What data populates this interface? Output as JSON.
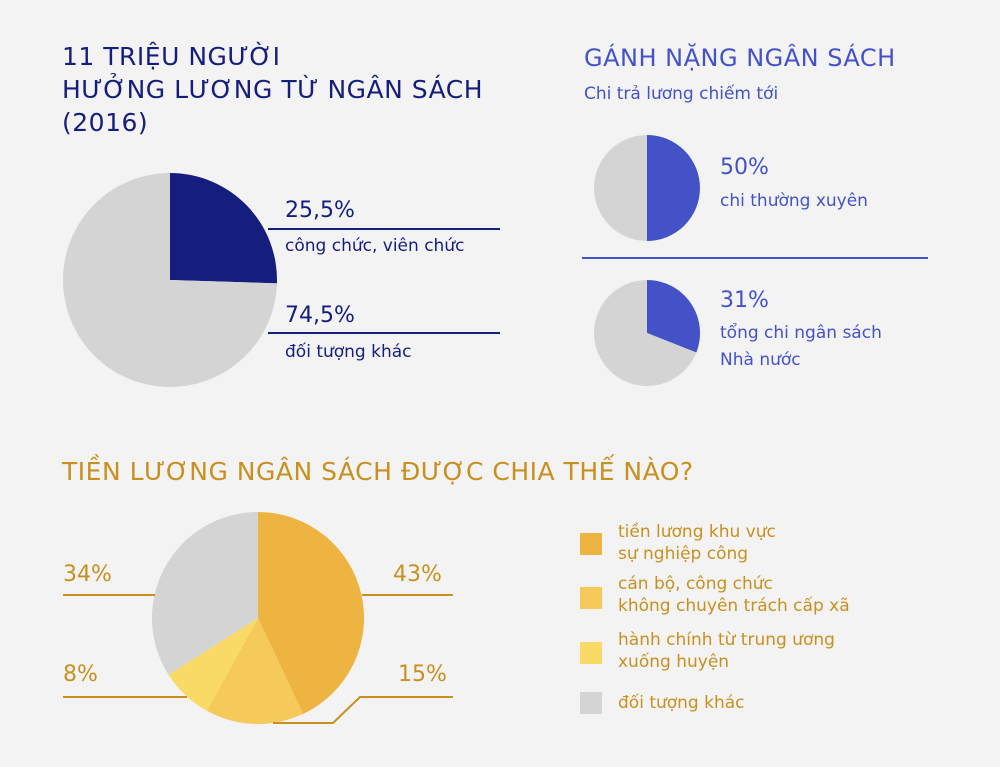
{
  "colors": {
    "navy": "#151e7c",
    "blue": "#4452c8",
    "gold_text": "#c8901e",
    "gray": "#d4d4d4",
    "gold1": "#edb441",
    "gold2": "#f5c95a",
    "gold3": "#fada66"
  },
  "chart_data": [
    {
      "type": "pie",
      "title": "11 TRIỆU NGƯỜI HƯỞNG LƯƠNG TỪ NGÂN SÁCH (2016)",
      "slices": [
        {
          "label": "công chức, viên chức",
          "value": 25.5,
          "display": "25,5%",
          "color": "#151e7c"
        },
        {
          "label": "đối tượng khác",
          "value": 74.5,
          "display": "74,5%",
          "color": "#d4d4d4"
        }
      ]
    },
    {
      "type": "pie",
      "title": "GÁNH NẶNG NGÂN SÁCH",
      "subtitle": "Chi trả lương chiếm tới",
      "slices": [
        {
          "label": "chi thường xuyên",
          "value": 50,
          "display": "50%",
          "color": "#4452c8"
        },
        {
          "label": "",
          "value": 50,
          "color": "#d4d4d4"
        }
      ]
    },
    {
      "type": "pie",
      "slices": [
        {
          "label": "tổng chi ngân sách Nhà nước",
          "value": 31,
          "display": "31%",
          "color": "#4452c8"
        },
        {
          "label": "",
          "value": 69,
          "color": "#d4d4d4"
        }
      ]
    },
    {
      "type": "pie",
      "title": "TIỀN LƯƠNG NGÂN SÁCH ĐƯỢC CHIA THẾ NÀO?",
      "legend": "right",
      "slices": [
        {
          "label": "tiền lương khu vực sự nghiệp công",
          "value": 43,
          "display": "43%",
          "color": "#edb441"
        },
        {
          "label": "cán bộ, công chức không chuyên trách cấp xã",
          "value": 15,
          "display": "15%",
          "color": "#f5c95a"
        },
        {
          "label": "hành chính từ trung ương xuống huyện",
          "value": 8,
          "display": "8%",
          "color": "#fada66"
        },
        {
          "label": "đối tượng khác",
          "value": 34,
          "display": "34%",
          "color": "#d4d4d4"
        }
      ]
    }
  ],
  "text": {
    "t1_line1": "11 TRIỆU NGƯỜI",
    "t1_line2": "HƯỞNG LƯƠNG TỪ NGÂN SÁCH",
    "t1_line3": "(2016)",
    "t2": "GÁNH NẶNG NGÂN SÁCH",
    "t2_sub": "Chi trả lương chiếm tới",
    "t3": "TIỀN LƯƠNG NGÂN SÁCH ĐƯỢC CHIA THẾ NÀO?",
    "p1a": "25,5%",
    "p1a_l": "công chức, viên chức",
    "p1b": "74,5%",
    "p1b_l": "đối tượng khác",
    "p2": "50%",
    "p2_l": "chi thường xuyên",
    "p3": "31%",
    "p3_l1": "tổng chi ngân sách",
    "p3_l2": "Nhà nước",
    "p4a": "43%",
    "p4b": "15%",
    "p4c": "8%",
    "p4d": "34%",
    "leg1a": "tiền lương khu vực",
    "leg1b": "sự nghiệp công",
    "leg2a": "cán bộ, công chức",
    "leg2b": "không chuyên trách cấp xã",
    "leg3a": "hành chính từ trung ương",
    "leg3b": "xuống huyện",
    "leg4": "đối tượng khác"
  }
}
